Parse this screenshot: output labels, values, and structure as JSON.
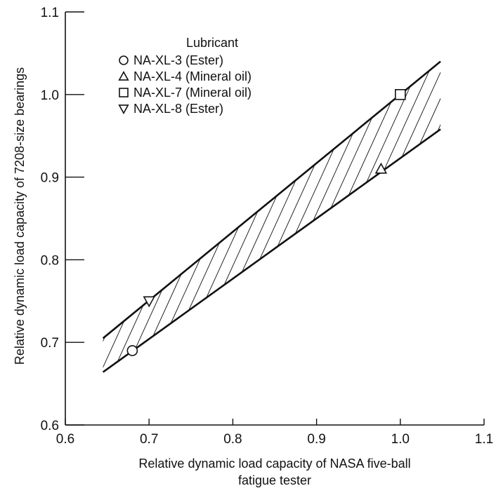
{
  "chart_data": {
    "type": "scatter",
    "title": "",
    "xlabel": [
      "Relative dynamic load capacity of NASA five-ball",
      "fatigue tester"
    ],
    "ylabel": "Relative dynamic load capacity of 7208-size bearings",
    "xlim": [
      0.6,
      1.1
    ],
    "ylim": [
      0.6,
      1.1
    ],
    "xticks": [
      "0.6",
      "0.7",
      "0.8",
      "0.9",
      "1.0",
      "1.1"
    ],
    "yticks": [
      "0.6",
      "0.7",
      "0.8",
      "0.9",
      "1.0",
      "1.1"
    ],
    "grid": false,
    "legend": {
      "title": "Lubricant",
      "placement": "top-left"
    },
    "series": [
      {
        "name": "NA-XL-3 (Ester)",
        "marker": "circle",
        "x": [
          0.68
        ],
        "y": [
          0.69
        ]
      },
      {
        "name": "NA-XL-4 (Mineral oil)",
        "marker": "triangle-up",
        "x": [
          0.977
        ],
        "y": [
          0.91
        ]
      },
      {
        "name": "NA-XL-7 (Mineral oil)",
        "marker": "square",
        "x": [
          1.0
        ],
        "y": [
          1.0
        ]
      },
      {
        "name": "NA-XL-8 (Ester)",
        "marker": "triangle-down",
        "x": [
          0.7
        ],
        "y": [
          0.75
        ]
      }
    ],
    "band": {
      "upper": {
        "x": [
          0.645,
          1.048
        ],
        "y": [
          0.705,
          1.04
        ]
      },
      "lower": {
        "x": [
          0.645,
          1.048
        ],
        "y": [
          0.664,
          0.958
        ]
      },
      "fill": "hatched"
    },
    "colors": {
      "ink": "#111111",
      "background": "#ffffff"
    }
  }
}
